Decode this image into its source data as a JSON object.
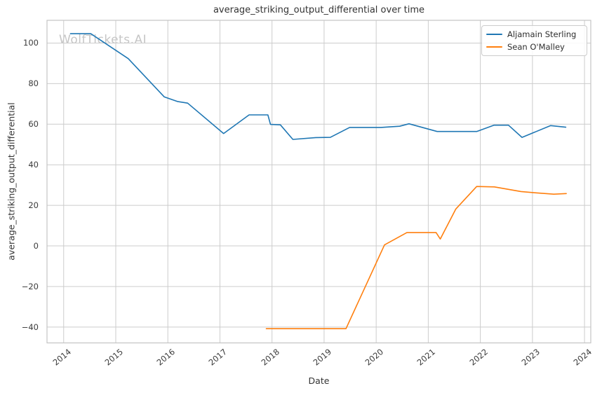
{
  "watermark": "WolfTickets.AI",
  "chart_data": {
    "type": "line",
    "title": "average_striking_output_differential over time",
    "xlabel": "Date",
    "ylabel": "average_striking_output_differential",
    "xlim": [
      2013.68,
      2024.12
    ],
    "ylim": [
      -47.8,
      111.2
    ],
    "grid": true,
    "legend_position": "upper right",
    "x_ticks": [
      2014,
      2015,
      2016,
      2017,
      2018,
      2019,
      2020,
      2021,
      2022,
      2023,
      2024
    ],
    "x_tick_labels": [
      "2014",
      "2015",
      "2016",
      "2017",
      "2018",
      "2019",
      "2020",
      "2021",
      "2022",
      "2023",
      "2024"
    ],
    "y_ticks": [
      -40,
      -20,
      0,
      20,
      40,
      60,
      80,
      100
    ],
    "y_tick_labels": [
      "−40",
      "−20",
      "0",
      "20",
      "40",
      "60",
      "80",
      "100"
    ],
    "series": [
      {
        "name": "Aljamain Sterling",
        "color": "#1f77b4",
        "x": [
          2014.13,
          2014.52,
          2015.24,
          2015.93,
          2016.18,
          2016.38,
          2017.07,
          2017.56,
          2017.92,
          2017.97,
          2018.16,
          2018.4,
          2018.84,
          2019.12,
          2019.49,
          2020.09,
          2020.45,
          2020.63,
          2021.17,
          2021.93,
          2022.26,
          2022.54,
          2022.8,
          2023.35,
          2023.64
        ],
        "y": [
          104.6,
          104.6,
          92.3,
          73.5,
          71.2,
          70.4,
          55.4,
          64.6,
          64.6,
          59.9,
          59.7,
          52.5,
          53.4,
          53.5,
          58.4,
          58.4,
          59.0,
          60.2,
          56.4,
          56.4,
          59.5,
          59.5,
          53.5,
          59.3,
          58.5
        ]
      },
      {
        "name": "Sean O'Malley",
        "color": "#ff7f0e",
        "x": [
          2017.89,
          2018.6,
          2019.42,
          2020.16,
          2020.59,
          2021.15,
          2021.23,
          2021.53,
          2021.93,
          2022.27,
          2022.78,
          2023.05,
          2023.41,
          2023.65
        ],
        "y": [
          -40.8,
          -40.8,
          -40.8,
          0.5,
          6.6,
          6.6,
          3.4,
          18.2,
          29.3,
          29.1,
          26.8,
          26.2,
          25.5,
          25.8
        ]
      }
    ]
  },
  "colors": {
    "background": "#ffffff",
    "grid": "#cccccc",
    "axis_border": "#c4c4c4",
    "tick_text": "#3b3b3b",
    "title_text": "#333333",
    "watermark_text": "#c6c6c6",
    "series_blue": "#1f77b4",
    "series_orange": "#ff7f0e"
  }
}
